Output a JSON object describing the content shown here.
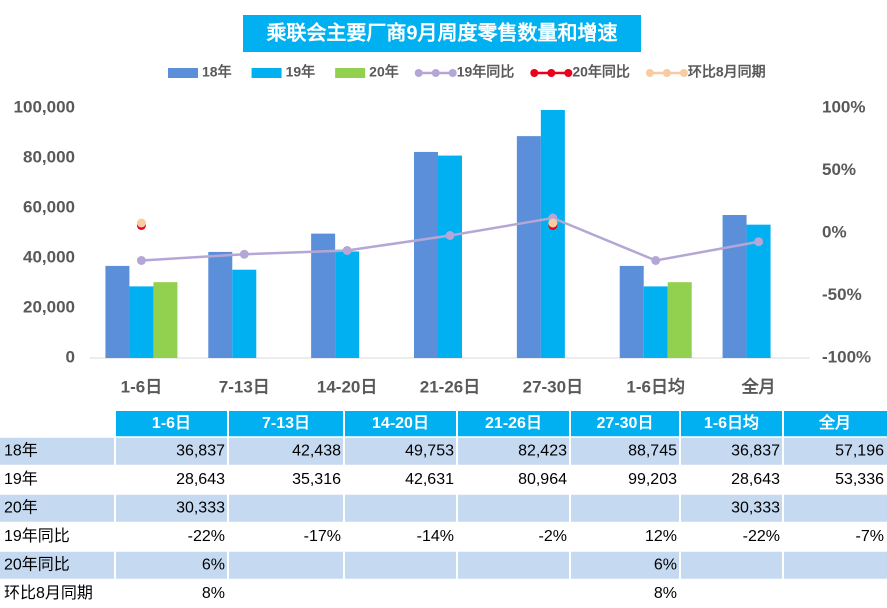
{
  "chart_data": {
    "type": "bar",
    "title": "乘联会主要厂商9月周度零售数量和增速",
    "categories": [
      "1-6日",
      "7-13日",
      "14-20日",
      "21-26日",
      "27-30日",
      "1-6日均",
      "全月"
    ],
    "series": [
      {
        "name": "18年",
        "color": "#5b8fd9",
        "values": [
          36837,
          42438,
          49753,
          82423,
          88745,
          36837,
          57196
        ]
      },
      {
        "name": "19年",
        "color": "#00b0f0",
        "values": [
          28643,
          35316,
          42631,
          80964,
          99203,
          28643,
          53336
        ]
      },
      {
        "name": "20年",
        "color": "#92d050",
        "values": [
          30333,
          null,
          null,
          null,
          null,
          30333,
          null
        ]
      },
      {
        "name": "19年同比",
        "color": "#b4a7d6",
        "type": "line",
        "axis": "y2",
        "values": [
          -22,
          -17,
          -14,
          -2,
          12,
          -22,
          -7
        ]
      },
      {
        "name": "20年同比",
        "color": "#e8001c",
        "type": "line",
        "axis": "y2",
        "values": [
          6,
          null,
          null,
          null,
          6,
          null,
          null
        ]
      },
      {
        "name": "环比8月同期",
        "color": "#f8cba0",
        "type": "line",
        "axis": "y2",
        "values": [
          8,
          null,
          null,
          null,
          8,
          null,
          null
        ]
      }
    ],
    "ylim": [
      0,
      100000
    ],
    "yticks": [
      0,
      {
        "value": 20000,
        "label": "20,000"
      },
      {
        "value": 40000,
        "label": "40,000"
      },
      {
        "value": 60000,
        "label": "60,000"
      },
      {
        "value": 80000,
        "label": "80,000"
      },
      {
        "value": 100000,
        "label": "100,000"
      }
    ],
    "y2lim": [
      -100,
      100
    ],
    "y2ticks": [
      {
        "value": -100,
        "label": "-100%"
      },
      {
        "value": -50,
        "label": "-50%"
      },
      {
        "value": 0,
        "label": "0%"
      },
      {
        "value": 50,
        "label": "50%"
      },
      {
        "value": 100,
        "label": "100%"
      }
    ],
    "legend": "top"
  },
  "table": {
    "header": [
      "1-6日",
      "7-13日",
      "14-20日",
      "21-26日",
      "27-30日",
      "1-6日均",
      "全月"
    ],
    "rows": [
      [
        "18年",
        "36,837",
        "42,438",
        "49,753",
        "82,423",
        "88,745",
        "36,837",
        "57,196"
      ],
      [
        "19年",
        "28,643",
        "35,316",
        "42,631",
        "80,964",
        "99,203",
        "28,643",
        "53,336"
      ],
      [
        "20年",
        "30,333",
        "",
        "",
        "",
        "",
        "30,333",
        ""
      ],
      [
        "19年同比",
        "-22%",
        "-17%",
        "-14%",
        "-2%",
        "12%",
        "-22%",
        "-7%"
      ],
      [
        "20年同比",
        "6%",
        "",
        "",
        "",
        "6%",
        "",
        ""
      ],
      [
        "环比8月同期",
        "8%",
        "",
        "",
        "",
        "8%",
        "",
        ""
      ]
    ]
  }
}
